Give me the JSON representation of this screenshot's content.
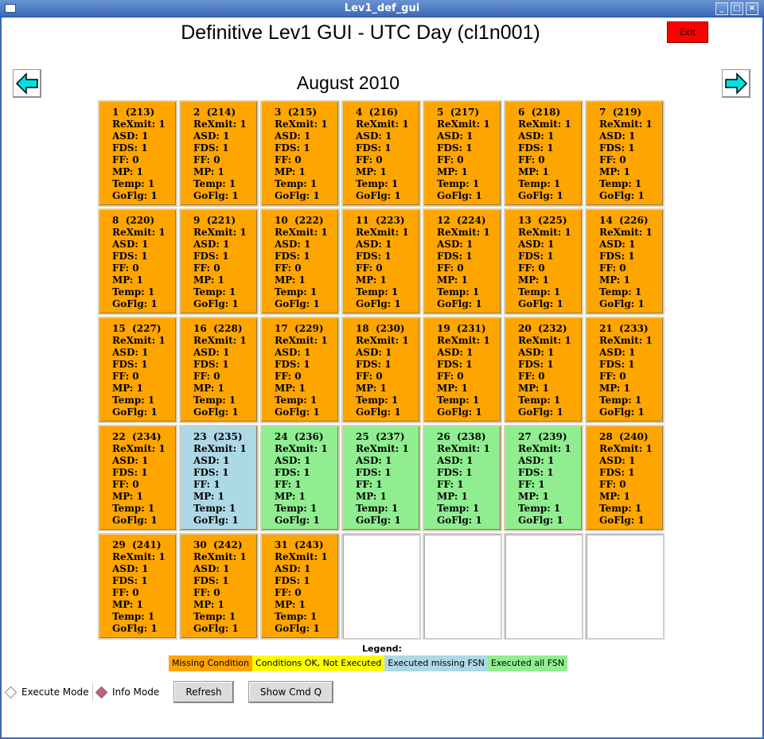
{
  "window": {
    "title": "Lev1_def_gui"
  },
  "header": {
    "title": "Definitive Lev1 GUI - UTC Day (cl1n001)",
    "exit_label": "Exit"
  },
  "calendar": {
    "month_title": "August 2010",
    "status_colors": {
      "missing": "#FFA500",
      "ok_not_executed": "#FFFF00",
      "executed_missing": "#ADD8E6",
      "executed_all": "#90EE90"
    },
    "days": [
      {
        "day": "1",
        "doy": "213",
        "rexmit": "1",
        "asd": "1",
        "fds": "1",
        "ff": "0",
        "mp": "1",
        "temp": "1",
        "goflg": "1",
        "status": "missing"
      },
      {
        "day": "2",
        "doy": "214",
        "rexmit": "1",
        "asd": "1",
        "fds": "1",
        "ff": "0",
        "mp": "1",
        "temp": "1",
        "goflg": "1",
        "status": "missing"
      },
      {
        "day": "3",
        "doy": "215",
        "rexmit": "1",
        "asd": "1",
        "fds": "1",
        "ff": "0",
        "mp": "1",
        "temp": "1",
        "goflg": "1",
        "status": "missing"
      },
      {
        "day": "4",
        "doy": "216",
        "rexmit": "1",
        "asd": "1",
        "fds": "1",
        "ff": "0",
        "mp": "1",
        "temp": "1",
        "goflg": "1",
        "status": "missing"
      },
      {
        "day": "5",
        "doy": "217",
        "rexmit": "1",
        "asd": "1",
        "fds": "1",
        "ff": "0",
        "mp": "1",
        "temp": "1",
        "goflg": "1",
        "status": "missing"
      },
      {
        "day": "6",
        "doy": "218",
        "rexmit": "1",
        "asd": "1",
        "fds": "1",
        "ff": "0",
        "mp": "1",
        "temp": "1",
        "goflg": "1",
        "status": "missing"
      },
      {
        "day": "7",
        "doy": "219",
        "rexmit": "1",
        "asd": "1",
        "fds": "1",
        "ff": "0",
        "mp": "1",
        "temp": "1",
        "goflg": "1",
        "status": "missing"
      },
      {
        "day": "8",
        "doy": "220",
        "rexmit": "1",
        "asd": "1",
        "fds": "1",
        "ff": "0",
        "mp": "1",
        "temp": "1",
        "goflg": "1",
        "status": "missing"
      },
      {
        "day": "9",
        "doy": "221",
        "rexmit": "1",
        "asd": "1",
        "fds": "1",
        "ff": "0",
        "mp": "1",
        "temp": "1",
        "goflg": "1",
        "status": "missing"
      },
      {
        "day": "10",
        "doy": "222",
        "rexmit": "1",
        "asd": "1",
        "fds": "1",
        "ff": "0",
        "mp": "1",
        "temp": "1",
        "goflg": "1",
        "status": "missing"
      },
      {
        "day": "11",
        "doy": "223",
        "rexmit": "1",
        "asd": "1",
        "fds": "1",
        "ff": "0",
        "mp": "1",
        "temp": "1",
        "goflg": "1",
        "status": "missing"
      },
      {
        "day": "12",
        "doy": "224",
        "rexmit": "1",
        "asd": "1",
        "fds": "1",
        "ff": "0",
        "mp": "1",
        "temp": "1",
        "goflg": "1",
        "status": "missing"
      },
      {
        "day": "13",
        "doy": "225",
        "rexmit": "1",
        "asd": "1",
        "fds": "1",
        "ff": "0",
        "mp": "1",
        "temp": "1",
        "goflg": "1",
        "status": "missing"
      },
      {
        "day": "14",
        "doy": "226",
        "rexmit": "1",
        "asd": "1",
        "fds": "1",
        "ff": "0",
        "mp": "1",
        "temp": "1",
        "goflg": "1",
        "status": "missing"
      },
      {
        "day": "15",
        "doy": "227",
        "rexmit": "1",
        "asd": "1",
        "fds": "1",
        "ff": "0",
        "mp": "1",
        "temp": "1",
        "goflg": "1",
        "status": "missing"
      },
      {
        "day": "16",
        "doy": "228",
        "rexmit": "1",
        "asd": "1",
        "fds": "1",
        "ff": "0",
        "mp": "1",
        "temp": "1",
        "goflg": "1",
        "status": "missing"
      },
      {
        "day": "17",
        "doy": "229",
        "rexmit": "1",
        "asd": "1",
        "fds": "1",
        "ff": "0",
        "mp": "1",
        "temp": "1",
        "goflg": "1",
        "status": "missing"
      },
      {
        "day": "18",
        "doy": "230",
        "rexmit": "1",
        "asd": "1",
        "fds": "1",
        "ff": "0",
        "mp": "1",
        "temp": "1",
        "goflg": "1",
        "status": "missing"
      },
      {
        "day": "19",
        "doy": "231",
        "rexmit": "1",
        "asd": "1",
        "fds": "1",
        "ff": "0",
        "mp": "1",
        "temp": "1",
        "goflg": "1",
        "status": "missing"
      },
      {
        "day": "20",
        "doy": "232",
        "rexmit": "1",
        "asd": "1",
        "fds": "1",
        "ff": "0",
        "mp": "1",
        "temp": "1",
        "goflg": "1",
        "status": "missing"
      },
      {
        "day": "21",
        "doy": "233",
        "rexmit": "1",
        "asd": "1",
        "fds": "1",
        "ff": "0",
        "mp": "1",
        "temp": "1",
        "goflg": "1",
        "status": "missing"
      },
      {
        "day": "22",
        "doy": "234",
        "rexmit": "1",
        "asd": "1",
        "fds": "1",
        "ff": "0",
        "mp": "1",
        "temp": "1",
        "goflg": "1",
        "status": "missing"
      },
      {
        "day": "23",
        "doy": "235",
        "rexmit": "1",
        "asd": "1",
        "fds": "1",
        "ff": "1",
        "mp": "1",
        "temp": "1",
        "goflg": "1",
        "status": "executed_missing"
      },
      {
        "day": "24",
        "doy": "236",
        "rexmit": "1",
        "asd": "1",
        "fds": "1",
        "ff": "1",
        "mp": "1",
        "temp": "1",
        "goflg": "1",
        "status": "executed_all"
      },
      {
        "day": "25",
        "doy": "237",
        "rexmit": "1",
        "asd": "1",
        "fds": "1",
        "ff": "1",
        "mp": "1",
        "temp": "1",
        "goflg": "1",
        "status": "executed_all"
      },
      {
        "day": "26",
        "doy": "238",
        "rexmit": "1",
        "asd": "1",
        "fds": "1",
        "ff": "1",
        "mp": "1",
        "temp": "1",
        "goflg": "1",
        "status": "executed_all"
      },
      {
        "day": "27",
        "doy": "239",
        "rexmit": "1",
        "asd": "1",
        "fds": "1",
        "ff": "1",
        "mp": "1",
        "temp": "1",
        "goflg": "1",
        "status": "executed_all"
      },
      {
        "day": "28",
        "doy": "240",
        "rexmit": "1",
        "asd": "1",
        "fds": "1",
        "ff": "0",
        "mp": "1",
        "temp": "1",
        "goflg": "1",
        "status": "missing"
      },
      {
        "day": "29",
        "doy": "241",
        "rexmit": "1",
        "asd": "1",
        "fds": "1",
        "ff": "0",
        "mp": "1",
        "temp": "1",
        "goflg": "1",
        "status": "missing"
      },
      {
        "day": "30",
        "doy": "242",
        "rexmit": "1",
        "asd": "1",
        "fds": "1",
        "ff": "0",
        "mp": "1",
        "temp": "1",
        "goflg": "1",
        "status": "missing"
      },
      {
        "day": "31",
        "doy": "243",
        "rexmit": "1",
        "asd": "1",
        "fds": "1",
        "ff": "0",
        "mp": "1",
        "temp": "1",
        "goflg": "1",
        "status": "missing"
      }
    ]
  },
  "labels": {
    "rexmit": "ReXmit:",
    "asd": "ASD:",
    "fds": "FDS:",
    "ff": "FF:",
    "mp": "MP:",
    "temp": "Temp:",
    "goflg": "GoFlg:"
  },
  "legend": {
    "label": "Legend:",
    "items": [
      {
        "text": "Missing Condition",
        "color": "#FFA500"
      },
      {
        "text": "Conditions OK, Not Executed",
        "color": "#FFFF00"
      },
      {
        "text": "Executed missing FSN",
        "color": "#ADD8E6"
      },
      {
        "text": "Executed all FSN",
        "color": "#90EE90"
      }
    ]
  },
  "controls": {
    "execute_mode_label": "Execute Mode",
    "info_mode_label": "Info Mode",
    "selected_mode": "info",
    "refresh_label": "Refresh",
    "show_cmd_q_label": "Show Cmd Q"
  }
}
